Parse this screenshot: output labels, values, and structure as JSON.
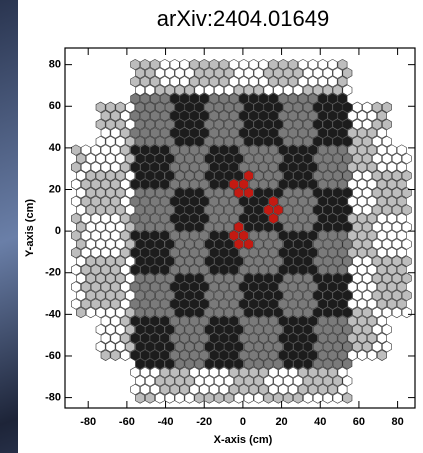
{
  "chart_data": {
    "type": "hexmap",
    "title": "arXiv:2404.01649",
    "x_label": "X-axis (cm)",
    "y_label": "Y-axis (cm)",
    "xlim": [
      -92,
      89
    ],
    "ylim": [
      -85,
      88
    ],
    "xticks": [
      -80,
      -60,
      -40,
      -20,
      0,
      20,
      40,
      60,
      80
    ],
    "yticks": [
      -80,
      -60,
      -40,
      -20,
      0,
      20,
      40,
      60,
      80
    ]
  }
}
